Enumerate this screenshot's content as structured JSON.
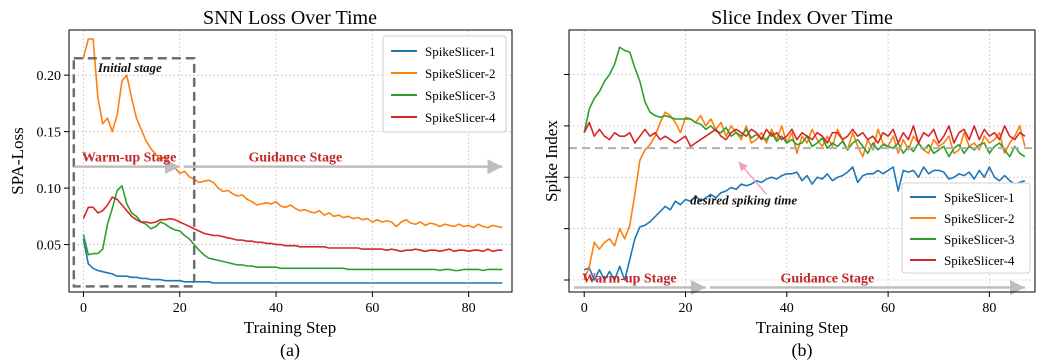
{
  "chart_data": [
    {
      "type": "line",
      "title": "SNN Loss Over Time",
      "xlabel": "Training Step",
      "ylabel": "SPA-Loss",
      "caption": "(a)",
      "xlim": [
        -3,
        89
      ],
      "ylim": [
        0.008,
        0.24
      ],
      "xticks": [
        0,
        20,
        40,
        60,
        80
      ],
      "yticks": [
        0.05,
        0.1,
        0.15,
        0.2
      ],
      "ytick_labels": [
        "0.05",
        "0.10",
        "0.15",
        "0.20"
      ],
      "grid": true,
      "legend_position": "top-right",
      "colors": {
        "SpikeSlicer-1": "#1f77b4",
        "SpikeSlicer-2": "#ff7f0e",
        "SpikeSlicer-3": "#2ca02c",
        "SpikeSlicer-4": "#d62728"
      },
      "series": [
        {
          "name": "SpikeSlicer-1",
          "x_start": 0,
          "values": [
            0.055,
            0.033,
            0.029,
            0.027,
            0.026,
            0.025,
            0.024,
            0.022,
            0.022,
            0.022,
            0.021,
            0.021,
            0.02,
            0.02,
            0.019,
            0.019,
            0.019,
            0.018,
            0.018,
            0.018,
            0.018,
            0.017,
            0.017,
            0.017,
            0.017,
            0.017,
            0.017,
            0.016,
            0.016,
            0.016,
            0.016,
            0.016,
            0.016,
            0.016,
            0.016,
            0.016,
            0.016,
            0.016,
            0.016,
            0.016,
            0.016,
            0.016,
            0.016,
            0.016,
            0.016,
            0.016,
            0.016,
            0.016,
            0.016,
            0.016,
            0.016,
            0.016,
            0.016,
            0.016,
            0.016,
            0.016,
            0.016,
            0.016,
            0.016,
            0.016,
            0.016,
            0.016,
            0.016,
            0.016,
            0.016,
            0.016,
            0.016,
            0.016,
            0.016,
            0.016,
            0.016,
            0.016,
            0.016,
            0.016,
            0.016,
            0.016,
            0.016,
            0.016,
            0.016,
            0.016,
            0.016,
            0.016,
            0.016,
            0.016,
            0.016,
            0.016,
            0.016,
            0.016
          ]
        },
        {
          "name": "SpikeSlicer-2",
          "x_start": 0,
          "values": [
            0.215,
            0.232,
            0.232,
            0.18,
            0.157,
            0.162,
            0.15,
            0.165,
            0.195,
            0.2,
            0.18,
            0.162,
            0.152,
            0.142,
            0.135,
            0.13,
            0.125,
            0.128,
            0.122,
            0.118,
            0.113,
            0.115,
            0.11,
            0.108,
            0.105,
            0.106,
            0.107,
            0.105,
            0.1,
            0.097,
            0.098,
            0.095,
            0.093,
            0.094,
            0.09,
            0.088,
            0.085,
            0.086,
            0.087,
            0.086,
            0.088,
            0.084,
            0.083,
            0.085,
            0.082,
            0.08,
            0.081,
            0.079,
            0.078,
            0.08,
            0.076,
            0.078,
            0.075,
            0.076,
            0.074,
            0.075,
            0.073,
            0.074,
            0.072,
            0.073,
            0.07,
            0.072,
            0.07,
            0.071,
            0.07,
            0.066,
            0.07,
            0.072,
            0.069,
            0.068,
            0.07,
            0.067,
            0.069,
            0.068,
            0.066,
            0.068,
            0.067,
            0.066,
            0.068,
            0.066,
            0.067,
            0.065,
            0.068,
            0.066,
            0.065,
            0.067,
            0.066,
            0.065
          ]
        },
        {
          "name": "SpikeSlicer-3",
          "x_start": 0,
          "values": [
            0.059,
            0.041,
            0.042,
            0.042,
            0.046,
            0.068,
            0.082,
            0.098,
            0.102,
            0.086,
            0.078,
            0.075,
            0.07,
            0.068,
            0.064,
            0.066,
            0.07,
            0.068,
            0.065,
            0.063,
            0.062,
            0.058,
            0.055,
            0.05,
            0.045,
            0.041,
            0.038,
            0.037,
            0.036,
            0.035,
            0.034,
            0.033,
            0.032,
            0.032,
            0.031,
            0.031,
            0.03,
            0.03,
            0.03,
            0.03,
            0.03,
            0.029,
            0.029,
            0.029,
            0.029,
            0.029,
            0.029,
            0.029,
            0.029,
            0.029,
            0.029,
            0.029,
            0.029,
            0.029,
            0.029,
            0.028,
            0.028,
            0.028,
            0.028,
            0.028,
            0.028,
            0.028,
            0.028,
            0.028,
            0.028,
            0.028,
            0.028,
            0.028,
            0.028,
            0.028,
            0.028,
            0.028,
            0.028,
            0.028,
            0.027,
            0.028,
            0.028,
            0.027,
            0.027,
            0.028,
            0.028,
            0.028,
            0.028,
            0.027,
            0.028,
            0.028,
            0.028,
            0.028
          ]
        },
        {
          "name": "SpikeSlicer-4",
          "x_start": 0,
          "values": [
            0.073,
            0.083,
            0.083,
            0.078,
            0.08,
            0.085,
            0.092,
            0.09,
            0.085,
            0.08,
            0.075,
            0.072,
            0.07,
            0.07,
            0.069,
            0.07,
            0.072,
            0.072,
            0.073,
            0.072,
            0.07,
            0.068,
            0.066,
            0.064,
            0.062,
            0.06,
            0.059,
            0.058,
            0.058,
            0.057,
            0.056,
            0.055,
            0.054,
            0.054,
            0.053,
            0.053,
            0.052,
            0.052,
            0.051,
            0.051,
            0.05,
            0.05,
            0.049,
            0.049,
            0.049,
            0.048,
            0.048,
            0.048,
            0.048,
            0.048,
            0.048,
            0.047,
            0.047,
            0.047,
            0.047,
            0.047,
            0.047,
            0.047,
            0.046,
            0.046,
            0.046,
            0.046,
            0.046,
            0.045,
            0.046,
            0.045,
            0.044,
            0.045,
            0.045,
            0.046,
            0.045,
            0.044,
            0.045,
            0.045,
            0.044,
            0.045,
            0.046,
            0.044,
            0.045,
            0.045,
            0.044,
            0.045,
            0.045,
            0.044,
            0.046,
            0.044,
            0.045,
            0.045
          ]
        }
      ],
      "annotations": {
        "initial_stage_label": "Initial stage",
        "warmup_label": "Warm-up Stage",
        "guidance_label": "Guidance Stage",
        "stage_arrow_y": 0.119,
        "stage_split_x": 20,
        "initial_box_x": [
          -2,
          23
        ],
        "initial_box_y": [
          0.013,
          0.215
        ]
      }
    },
    {
      "type": "line",
      "title": "Slice Index Over Time",
      "xlabel": "Training Step",
      "ylabel": "Spike Index",
      "caption": "(b)",
      "xlim": [
        -3,
        89
      ],
      "ylim": [
        -0.35,
        7.3
      ],
      "xticks": [
        0,
        20,
        40,
        60,
        80
      ],
      "yticks": [
        0,
        1.5,
        3,
        4.5,
        6
      ],
      "ytick_labels": [
        "",
        "",
        "",
        "",
        ""
      ],
      "grid": true,
      "legend_position": "lower-right",
      "colors": {
        "SpikeSlicer-1": "#1f77b4",
        "SpikeSlicer-2": "#ff7f0e",
        "SpikeSlicer-3": "#2ca02c",
        "SpikeSlicer-4": "#d62728"
      },
      "series": [
        {
          "name": "SpikeSlicer-1",
          "x_start": 0,
          "values": [
            0.3,
            0.35,
            0.0,
            0.3,
            0.0,
            0.25,
            0.0,
            0.4,
            0.0,
            0.6,
            1.2,
            1.55,
            1.6,
            1.7,
            1.85,
            2.0,
            2.15,
            2.05,
            2.3,
            2.2,
            2.35,
            2.3,
            2.45,
            2.3,
            2.4,
            2.5,
            2.4,
            2.55,
            2.6,
            2.7,
            2.65,
            2.8,
            2.75,
            2.8,
            2.9,
            2.85,
            2.95,
            3.0,
            2.95,
            3.05,
            3.1,
            3.1,
            3.15,
            2.9,
            3.05,
            2.8,
            3.0,
            2.95,
            3.1,
            2.9,
            3.0,
            3.05,
            3.15,
            3.3,
            2.85,
            3.05,
            3.1,
            3.1,
            3.2,
            3.1,
            3.2,
            3.3,
            2.6,
            3.2,
            3.15,
            3.2,
            3.0,
            3.3,
            3.1,
            3.2,
            3.2,
            3.15,
            2.95,
            3.0,
            3.1,
            3.05,
            3.15,
            2.95,
            3.2,
            3.0,
            3.3,
            3.0,
            2.9,
            3.05,
            2.9,
            2.8,
            2.85,
            2.9
          ]
        },
        {
          "name": "SpikeSlicer-2",
          "x_start": 0,
          "values": [
            0.0,
            0.4,
            1.1,
            0.9,
            1.1,
            1.2,
            1.0,
            1.5,
            1.2,
            1.6,
            2.5,
            3.5,
            3.8,
            3.95,
            4.2,
            4.6,
            4.9,
            4.8,
            4.6,
            4.3,
            4.75,
            4.7,
            4.6,
            4.8,
            4.5,
            4.7,
            4.4,
            4.6,
            4.2,
            4.5,
            4.3,
            4.1,
            4.5,
            4.0,
            4.1,
            4.3,
            4.0,
            4.4,
            4.1,
            4.5,
            4.0,
            4.3,
            3.7,
            4.2,
            4.0,
            4.4,
            4.1,
            3.9,
            4.2,
            3.9,
            4.4,
            4.1,
            3.8,
            4.3,
            3.9,
            3.6,
            4.1,
            3.8,
            4.4,
            4.0,
            3.9,
            4.2,
            3.7,
            4.1,
            3.8,
            4.2,
            4.0,
            3.8,
            3.7,
            4.1,
            3.9,
            4.0,
            4.2,
            3.7,
            3.8,
            4.3,
            3.9,
            4.0,
            3.8,
            4.2,
            4.0,
            4.1,
            4.3,
            3.7,
            4.0,
            4.2,
            4.5,
            3.9
          ]
        },
        {
          "name": "SpikeSlicer-3",
          "x_start": 0,
          "values": [
            4.3,
            5.0,
            5.3,
            5.5,
            5.8,
            6.0,
            6.3,
            6.8,
            6.7,
            6.65,
            6.2,
            5.8,
            5.2,
            4.9,
            4.8,
            4.75,
            4.8,
            4.75,
            4.7,
            4.7,
            4.7,
            4.7,
            4.6,
            4.55,
            4.4,
            4.5,
            4.35,
            4.3,
            4.45,
            4.2,
            4.3,
            4.2,
            4.4,
            4.15,
            4.25,
            4.15,
            4.1,
            4.3,
            4.05,
            4.2,
            4.0,
            4.1,
            3.95,
            4.0,
            4.2,
            3.9,
            4.0,
            4.15,
            3.85,
            4.0,
            3.9,
            4.05,
            3.8,
            4.0,
            4.1,
            3.9,
            3.7,
            4.0,
            3.8,
            3.95,
            3.9,
            3.85,
            4.0,
            3.7,
            3.9,
            3.75,
            4.0,
            3.8,
            3.95,
            3.7,
            3.8,
            3.9,
            3.6,
            3.85,
            3.95,
            3.7,
            3.9,
            3.8,
            3.95,
            4.0,
            3.7,
            3.9,
            4.0,
            3.8,
            3.6,
            3.9,
            3.7,
            3.6
          ]
        },
        {
          "name": "SpikeSlicer-4",
          "x_start": 0,
          "values": [
            4.3,
            4.6,
            4.2,
            4.4,
            4.2,
            4.1,
            4.3,
            4.2,
            4.2,
            4.3,
            4.0,
            4.2,
            4.4,
            4.2,
            4.3,
            4.1,
            4.2,
            4.1,
            4.0,
            4.1,
            4.2,
            3.9,
            4.0,
            4.1,
            4.2,
            4.3,
            4.4,
            4.2,
            4.1,
            4.3,
            4.4,
            4.3,
            4.2,
            4.4,
            4.3,
            4.1,
            4.4,
            4.2,
            4.3,
            4.1,
            4.2,
            4.4,
            4.1,
            4.3,
            4.2,
            4.1,
            4.3,
            4.2,
            4.0,
            4.3,
            4.3,
            4.1,
            4.2,
            4.4,
            4.2,
            4.3,
            4.1,
            4.2,
            4.0,
            4.3,
            4.2,
            4.4,
            4.0,
            4.3,
            4.1,
            4.5,
            4.0,
            4.3,
            4.2,
            4.4,
            4.0,
            4.2,
            4.5,
            4.0,
            4.3,
            4.4,
            4.1,
            4.5,
            4.1,
            4.4,
            4.2,
            4.3,
            4.1,
            4.5,
            4.2,
            4.1,
            4.3,
            4.2
          ]
        }
      ],
      "annotations": {
        "desired_label": "desired spiking time",
        "desired_y": 3.85,
        "warmup_label": "Warm-up Stage",
        "guidance_label": "Guidance Stage",
        "stage_arrow_y": -0.22,
        "stage_split_x": 24,
        "desired_arrow_from": [
          36,
          2.5
        ],
        "desired_arrow_to": [
          30.5,
          3.45
        ]
      }
    }
  ]
}
